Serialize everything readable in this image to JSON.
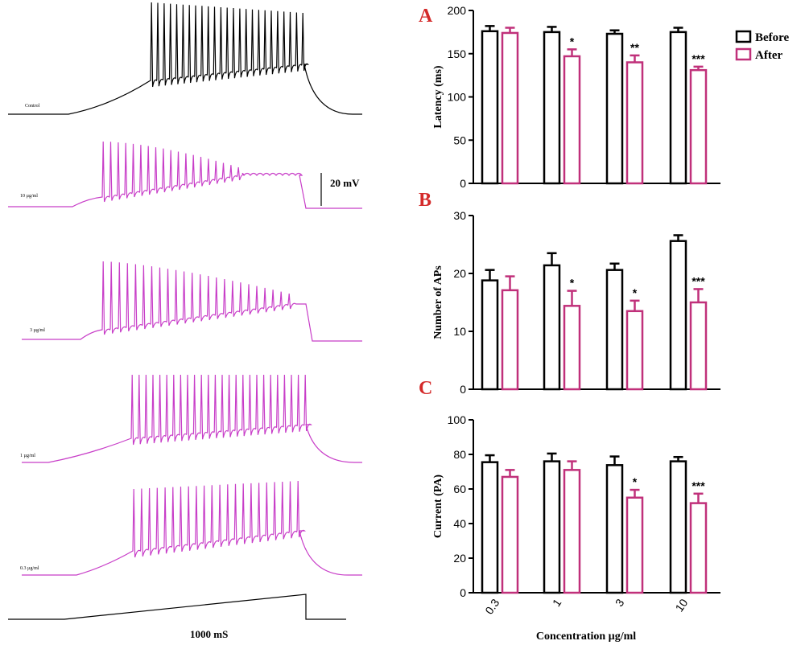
{
  "traces": [
    {
      "label": "Control",
      "color": "#000000"
    },
    {
      "label": "10 µg/ml",
      "color": "#c83ec8"
    },
    {
      "label": "3 µg/ml",
      "color": "#c83ec8"
    },
    {
      "label": "1 µg/ml",
      "color": "#c83ec8"
    },
    {
      "label": "0.3 µg/ml",
      "color": "#c83ec8"
    }
  ],
  "scale_bar": {
    "voltage": "20 mV",
    "time": "1000 mS"
  },
  "colors": {
    "before": "#000000",
    "after": "#c0307a",
    "panel_letter": "#d42a2a",
    "trace": "#c83ec8"
  },
  "legend": {
    "before": "Before",
    "after": "After"
  },
  "x_axis_label": "Concentration µg/ml",
  "chart_data": [
    {
      "type": "bar",
      "panel": "A",
      "categories": [
        "0.3",
        "1",
        "3",
        "10"
      ],
      "ylabel": "Latency (ms)",
      "ylim": [
        0,
        200
      ],
      "yticks": [
        0,
        50,
        100,
        150,
        200
      ],
      "series": [
        {
          "name": "Before",
          "values": [
            176,
            175,
            173,
            175
          ],
          "errors": [
            6,
            6,
            4,
            5
          ]
        },
        {
          "name": "After",
          "values": [
            174,
            147,
            140,
            131
          ],
          "errors": [
            6,
            8,
            8,
            4
          ]
        }
      ],
      "significance": [
        "",
        "*",
        "**",
        "***"
      ]
    },
    {
      "type": "bar",
      "panel": "B",
      "categories": [
        "0.3",
        "1",
        "3",
        "10"
      ],
      "ylabel": "Number of APs",
      "ylim": [
        0,
        30
      ],
      "yticks": [
        0,
        10,
        20,
        30
      ],
      "series": [
        {
          "name": "Before",
          "values": [
            18.8,
            21.4,
            20.6,
            25.6
          ],
          "errors": [
            1.8,
            2.1,
            1.1,
            1.0
          ]
        },
        {
          "name": "After",
          "values": [
            17.1,
            14.4,
            13.5,
            15.0
          ],
          "errors": [
            2.4,
            2.6,
            1.8,
            2.3
          ]
        }
      ],
      "significance": [
        "",
        "*",
        "*",
        "***"
      ]
    },
    {
      "type": "bar",
      "panel": "C",
      "categories": [
        "0.3",
        "1",
        "3",
        "10"
      ],
      "ylabel": "Current (PA)",
      "ylim": [
        0,
        100
      ],
      "yticks": [
        0,
        20,
        40,
        60,
        80,
        100
      ],
      "series": [
        {
          "name": "Before",
          "values": [
            75.5,
            76.0,
            73.8,
            76.0
          ],
          "errors": [
            4.0,
            4.5,
            5.0,
            2.5
          ]
        },
        {
          "name": "After",
          "values": [
            67.0,
            71.0,
            55.0,
            51.8
          ],
          "errors": [
            4.0,
            5.0,
            4.5,
            5.5
          ]
        }
      ],
      "significance": [
        "",
        "",
        "*",
        "***"
      ]
    }
  ]
}
